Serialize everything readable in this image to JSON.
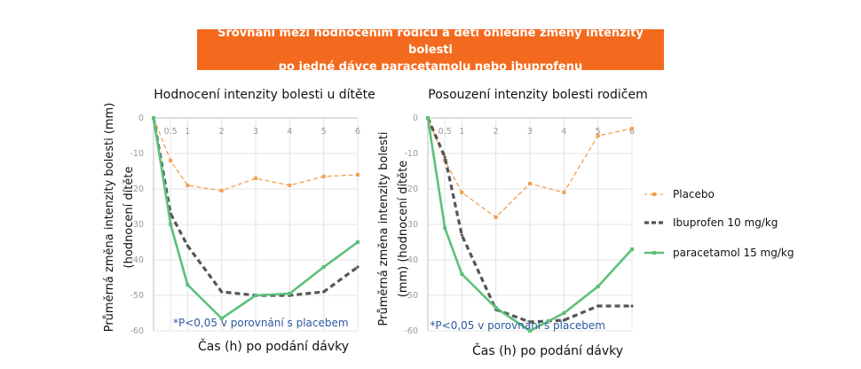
{
  "banner": {
    "line1": "Srovnání mezi hodnocením rodičů a dětí ohledně změny intenzity bolesti",
    "line2": "po jedné dávce paracetamolu nebo ibuprofenu"
  },
  "colors": {
    "banner": "#f36a1e",
    "placebo": "#f2a052",
    "ibuprofen": "#555555",
    "paracetamol": "#5cc07a",
    "note": "#2c5aa0"
  },
  "legend": [
    {
      "key": "placebo",
      "label": "Placebo"
    },
    {
      "key": "ibuprofen",
      "label": "Ibuprofen 10 mg/kg"
    },
    {
      "key": "paracetamol",
      "label": "paracetamol 15 mg/kg"
    }
  ],
  "chart_data": [
    {
      "type": "line",
      "title": "Hodnocení intenzity bolesti u dítěte",
      "ylabel_line1": "Průměrná změna intenzity bolesti (mm)",
      "ylabel_line2": "(hodnocení dítěte",
      "xlabel": "Čas (h) po podání dávky",
      "note": "*P<0,05 v porovnání s placebem",
      "x_ticks": [
        "0",
        "0.5",
        "1",
        "2",
        "3",
        "4",
        "5",
        "6"
      ],
      "y_ticks": [
        "0",
        "-10",
        "-20",
        "-30",
        "-40",
        "-50",
        "-60"
      ],
      "ylim": [
        -60,
        0
      ],
      "x": [
        0,
        0.5,
        1,
        2,
        3,
        4,
        5,
        6
      ],
      "series": [
        {
          "key": "placebo",
          "name": "Placebo",
          "values": [
            0,
            -12,
            -19,
            -20.5,
            -17,
            -19,
            -16.5,
            -16
          ]
        },
        {
          "key": "ibuprofen",
          "name": "Ibuprofen 10 mg/kg",
          "values": [
            0,
            -27,
            -36,
            -49,
            -50,
            -50,
            -49,
            -42
          ]
        },
        {
          "key": "paracetamol",
          "name": "paracetamol 15 mg/kg",
          "values": [
            0,
            -30,
            -47,
            -56.5,
            -50,
            -49.5,
            -42,
            -35
          ]
        }
      ]
    },
    {
      "type": "line",
      "title": "Posouzení intenzity bolesti rodičem",
      "ylabel_line1": "Průměrná změna intenzity bolesti",
      "ylabel_line2": "(mm) (hodnocení dítěte",
      "xlabel": "Čas (h) po podání dávky",
      "note": "*P<0,05 v porovnání s placebem",
      "x_ticks": [
        "0",
        "0.5",
        "1",
        "2",
        "3",
        "4",
        "5",
        "6"
      ],
      "y_ticks": [
        "0",
        "-10",
        "-20",
        "-30",
        "-40",
        "-50",
        "-60"
      ],
      "ylim": [
        -60,
        0
      ],
      "x": [
        0,
        0.5,
        1,
        2,
        3,
        4,
        5,
        6
      ],
      "series": [
        {
          "key": "placebo",
          "name": "Placebo",
          "values": [
            0,
            -12,
            -21,
            -28,
            -18.5,
            -21,
            -5,
            -3
          ]
        },
        {
          "key": "ibuprofen",
          "name": "Ibuprofen 10 mg/kg",
          "values": [
            0,
            -11,
            -33,
            -54,
            -57.5,
            -57,
            -53,
            -53
          ]
        },
        {
          "key": "paracetamol",
          "name": "paracetamol 15 mg/kg",
          "values": [
            0,
            -31,
            -44,
            -53.5,
            -60,
            -55,
            -47.5,
            -37
          ]
        }
      ]
    }
  ]
}
